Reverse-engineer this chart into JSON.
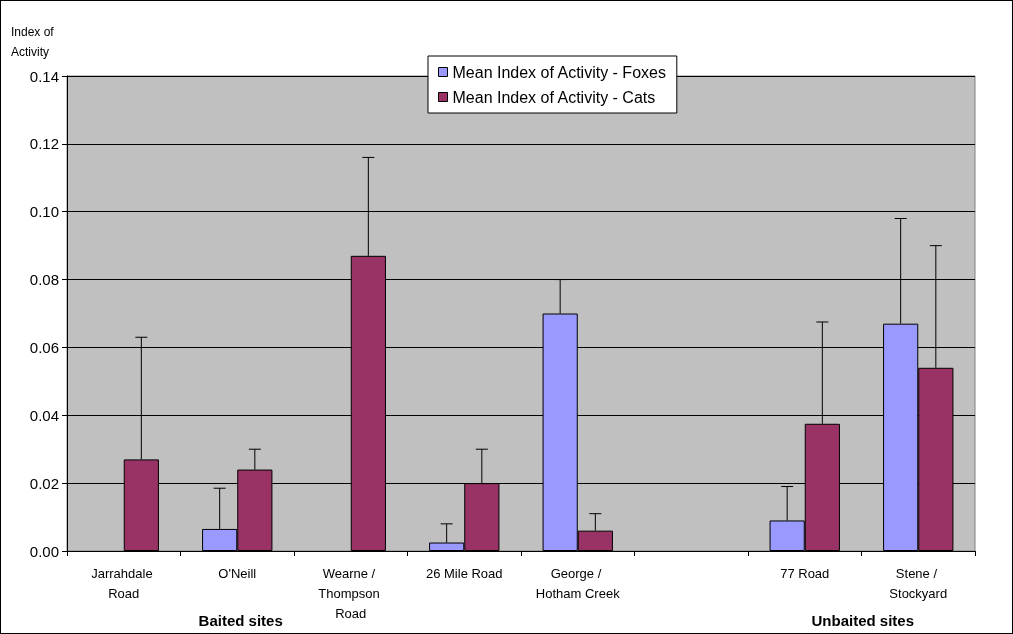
{
  "chart_data": {
    "type": "bar",
    "ylabel": "Index of\nActivity",
    "categories": [
      "Jarrahdale Road",
      "O'Neill",
      "Wearne / Thompson Road",
      "26 Mile Road",
      "George / Hotham Creek",
      null,
      "77 Road",
      "Stene / Stockyard"
    ],
    "series": [
      {
        "name": "Mean Index of Activity - Foxes",
        "color": "#9999ff",
        "values": [
          0,
          0.0065,
          0,
          0.0025,
          0.07,
          null,
          0.009,
          0.067
        ],
        "errors": [
          null,
          [
            0.0065,
            0.0185
          ],
          null,
          [
            0.0025,
            0.008
          ],
          [
            0.07,
            0.08
          ],
          null,
          [
            0.009,
            0.019
          ],
          [
            0.067,
            0.098
          ]
        ]
      },
      {
        "name": "Mean Index of Activity - Cats",
        "color": "#993366",
        "values": [
          0.027,
          0.024,
          0.087,
          0.02,
          0.006,
          null,
          0.0375,
          0.054
        ],
        "errors": [
          [
            0.027,
            0.063
          ],
          [
            0.024,
            0.03
          ],
          [
            0.087,
            0.116
          ],
          [
            0.02,
            0.03
          ],
          [
            0.006,
            0.011
          ],
          null,
          [
            0.0375,
            0.0675
          ],
          [
            0.054,
            0.09
          ]
        ]
      }
    ],
    "ylim": [
      0,
      0.14
    ],
    "yticks": [
      {
        "value": 0,
        "label": "0.00"
      },
      {
        "value": 0.02,
        "label": "0.02"
      },
      {
        "value": 0.04,
        "label": "0.04"
      },
      {
        "value": 0.06,
        "label": "0.06"
      },
      {
        "value": 0.08,
        "label": "0.08"
      },
      {
        "value": 0.1,
        "label": "0.10"
      },
      {
        "value": 0.12,
        "label": "0.12"
      },
      {
        "value": 0.14,
        "label": "0.14"
      }
    ],
    "grid": "y",
    "legend": "top",
    "annotations": [
      "Baited sites",
      "Unbaited sites"
    ]
  }
}
